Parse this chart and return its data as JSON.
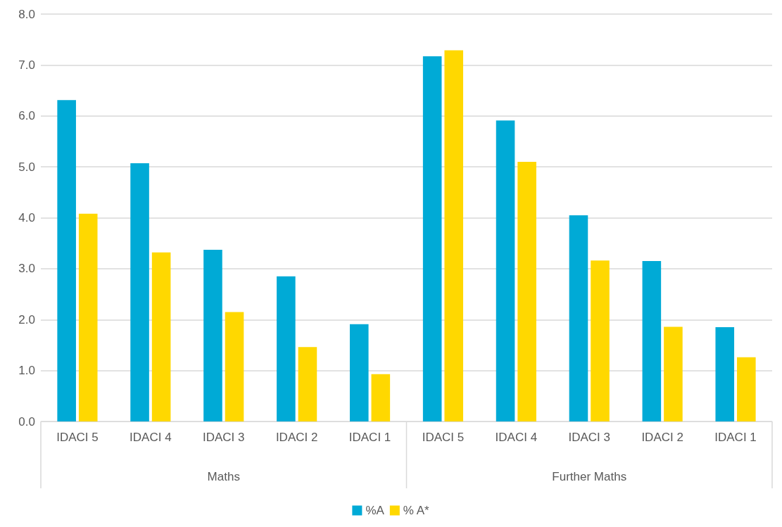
{
  "chart_data": {
    "type": "bar",
    "categories": [
      "IDACI 5",
      "IDACI 4",
      "IDACI 3",
      "IDACI 2",
      "IDACI 1",
      "IDACI 5",
      "IDACI 4",
      "IDACI 3",
      "IDACI 2",
      "IDACI 1"
    ],
    "annotations": [
      "Maths",
      "Further Maths"
    ],
    "series": [
      {
        "name": "%A",
        "color": "#00aad6",
        "values": [
          6.31,
          5.07,
          3.37,
          2.85,
          1.91,
          7.17,
          5.91,
          4.05,
          3.15,
          1.85
        ]
      },
      {
        "name": "% A*",
        "color": "#ffd800",
        "values": [
          4.08,
          3.32,
          2.15,
          1.46,
          0.93,
          7.29,
          5.1,
          3.16,
          1.86,
          1.26
        ]
      }
    ],
    "ylim": [
      0,
      8
    ],
    "yticks": [
      {
        "value": 0,
        "label": "0.0"
      },
      {
        "value": 1,
        "label": "1.0"
      },
      {
        "value": 2,
        "label": "2.0"
      },
      {
        "value": 3,
        "label": "3.0"
      },
      {
        "value": 4,
        "label": "4.0"
      },
      {
        "value": 5,
        "label": "5.0"
      },
      {
        "value": 6,
        "label": "6.0"
      },
      {
        "value": 7,
        "label": "7.0"
      },
      {
        "value": 8,
        "label": "8.0"
      }
    ],
    "grid": "y",
    "legend": "bottom"
  }
}
